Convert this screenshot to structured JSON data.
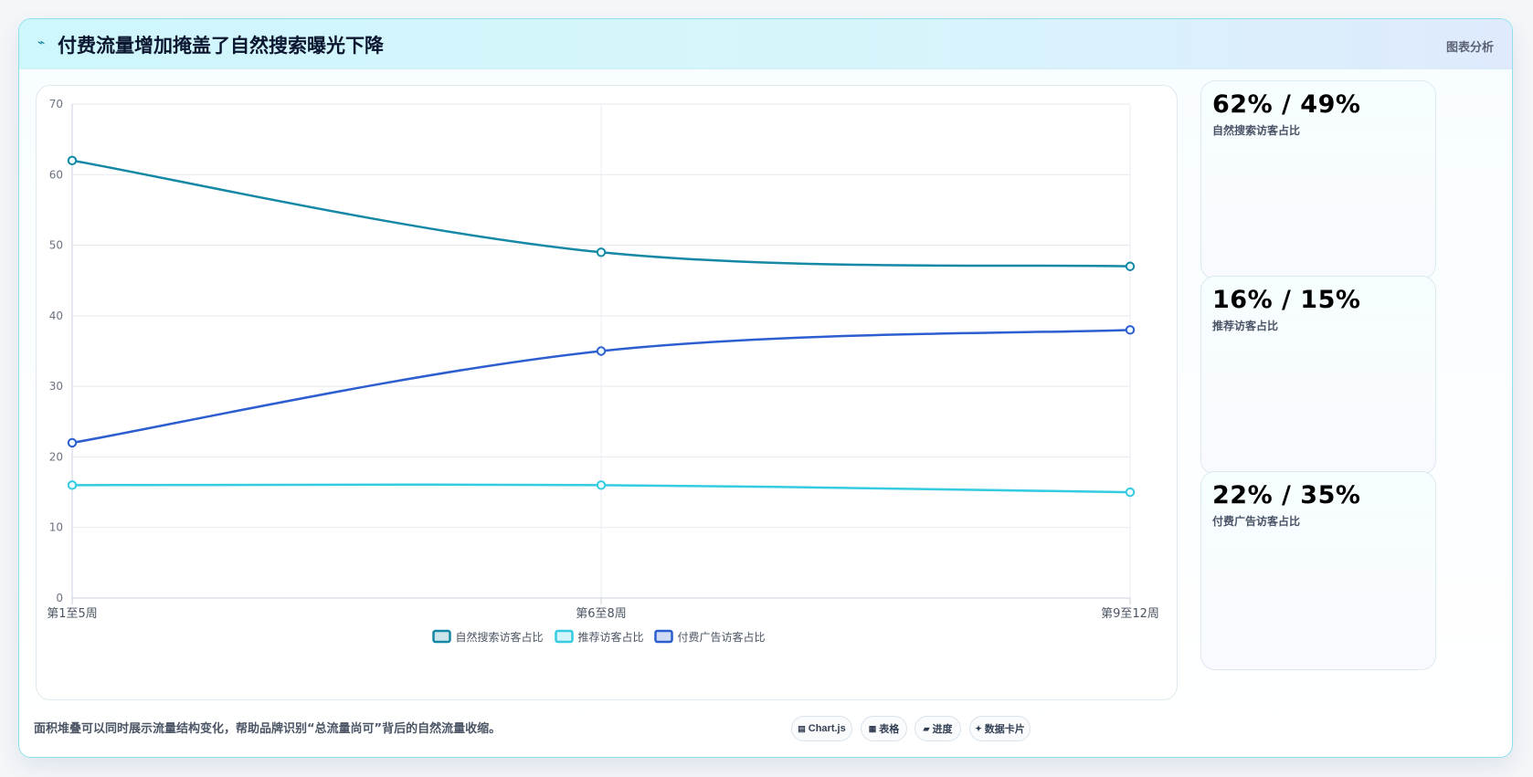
{
  "header": {
    "title": "付费流量增加掩盖了自然搜索曝光下降",
    "tag": "图表分析",
    "icon": "trend-icon"
  },
  "chart_data": {
    "type": "line",
    "x": [
      "第1至5周",
      "第6至8周",
      "第9至12周"
    ],
    "series": [
      {
        "name": "自然搜索访客占比",
        "values": [
          62,
          49,
          47
        ],
        "color": "#1488a5"
      },
      {
        "name": "推荐访客占比",
        "values": [
          16,
          16,
          15
        ],
        "color": "#35cbe2"
      },
      {
        "name": "付费广告访客占比",
        "values": [
          22,
          35,
          38
        ],
        "color": "#2d5ecf"
      }
    ],
    "y_ticks": [
      0,
      10,
      20,
      30,
      40,
      50,
      60,
      70
    ],
    "ylim": [
      0,
      70
    ],
    "grid": true,
    "legend_position": "bottom-center"
  },
  "side_cards": [
    {
      "value": "62% / 49%",
      "label": "自然搜索访客占比",
      "color": "#1488a5"
    },
    {
      "value": "16% / 15%",
      "label": "推荐访客占比",
      "color": "#36cfe4"
    },
    {
      "value": "22% / 35%",
      "label": "付费广告访客占比",
      "color": "#2d5ecf"
    }
  ],
  "footer": {
    "note": "面积堆叠可以同时展示流量结构变化，帮助品牌识别“总流量尚可”背后的自然流量收缩。",
    "pills": [
      {
        "label": "Chart.js",
        "icon": "chart-icon"
      },
      {
        "label": "表格",
        "icon": "table-icon"
      },
      {
        "label": "进度",
        "icon": "progress-icon"
      },
      {
        "label": "数据卡片",
        "icon": "spark-icon"
      }
    ]
  }
}
